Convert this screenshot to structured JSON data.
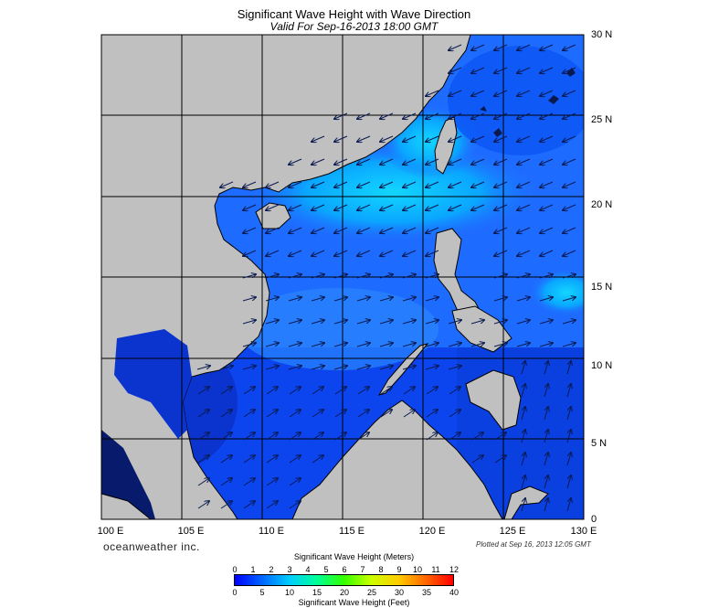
{
  "title": "Significant Wave Height with Wave Direction",
  "subtitle": "Valid For Sep-16-2013 18:00 GMT",
  "lon_labels": [
    "100 E",
    "105 E",
    "110 E",
    "115 E",
    "120 E",
    "125 E",
    "130 E"
  ],
  "lat_labels": [
    "30 N",
    "25 N",
    "20 N",
    "15 N",
    "10 N",
    "5 N",
    "0"
  ],
  "lon_range": [
    100,
    130
  ],
  "lat_range": [
    0,
    30
  ],
  "brand": "oceanweather inc.",
  "plotted": "Plotted at Sep 16, 2013 12:05 GMT",
  "legend": {
    "meters_title": "Significant Wave Height (Meters)",
    "feet_title": "Significant Wave Height (Feet)",
    "meters_ticks": [
      "0",
      "1",
      "2",
      "3",
      "4",
      "5",
      "6",
      "7",
      "8",
      "9",
      "10",
      "11",
      "12"
    ],
    "feet_ticks": [
      "0",
      "5",
      "10",
      "15",
      "20",
      "25",
      "30",
      "35",
      "40"
    ],
    "colors": [
      "#0000ff",
      "#0066ff",
      "#00ccff",
      "#00ff99",
      "#33ff00",
      "#ccff00",
      "#ffcc00",
      "#ff6600",
      "#ff0000"
    ]
  },
  "colors": {
    "land": "#c0c0c0",
    "deep_blue": "#0b3fe6",
    "mid_blue": "#1e6cff",
    "light_blue": "#0ec5ff",
    "gulf_dark": "#071a6b",
    "grid": "#000000",
    "arrow": "#0a1a50"
  }
}
